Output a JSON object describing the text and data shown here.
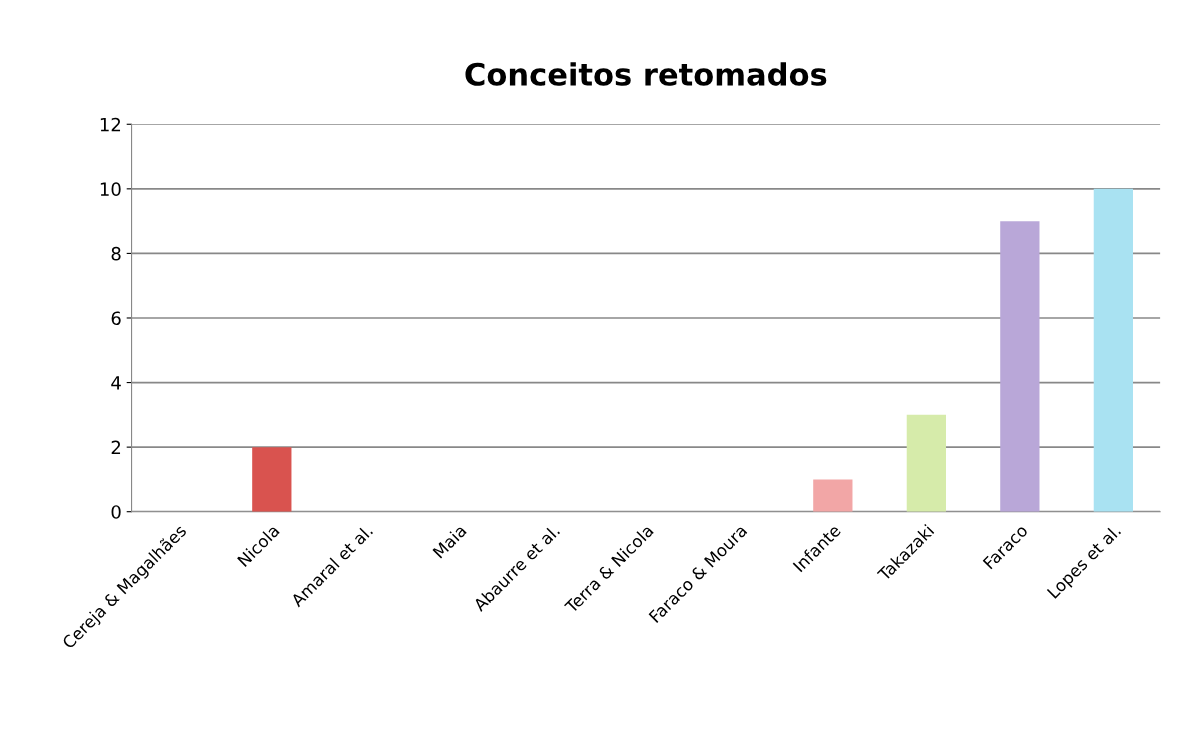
{
  "chart_data": {
    "type": "bar",
    "title": "Conceitos retomados",
    "categories": [
      "Cereja & Magalhães",
      "Nicola",
      "Amaral et al.",
      "Maia",
      "Abaurre et al.",
      "Terra & Nicola",
      "Faraco & Moura",
      "Infante",
      "Takazaki",
      "Faraco",
      "Lopes et al."
    ],
    "values": [
      0,
      2,
      0,
      0,
      0,
      0,
      0,
      1,
      3,
      9,
      10
    ],
    "colors": [
      "#4f81bd",
      "#d9534f",
      "#9bbb59",
      "#8064a2",
      "#4bacc6",
      "#f79646",
      "#7f9fcf",
      "#f2a6a6",
      "#d6ebaa",
      "#b9a7d8",
      "#a9e2f2"
    ],
    "ylim": [
      0,
      12
    ],
    "yticks": [
      0,
      2,
      4,
      6,
      8,
      10,
      12
    ],
    "grid": "y"
  }
}
